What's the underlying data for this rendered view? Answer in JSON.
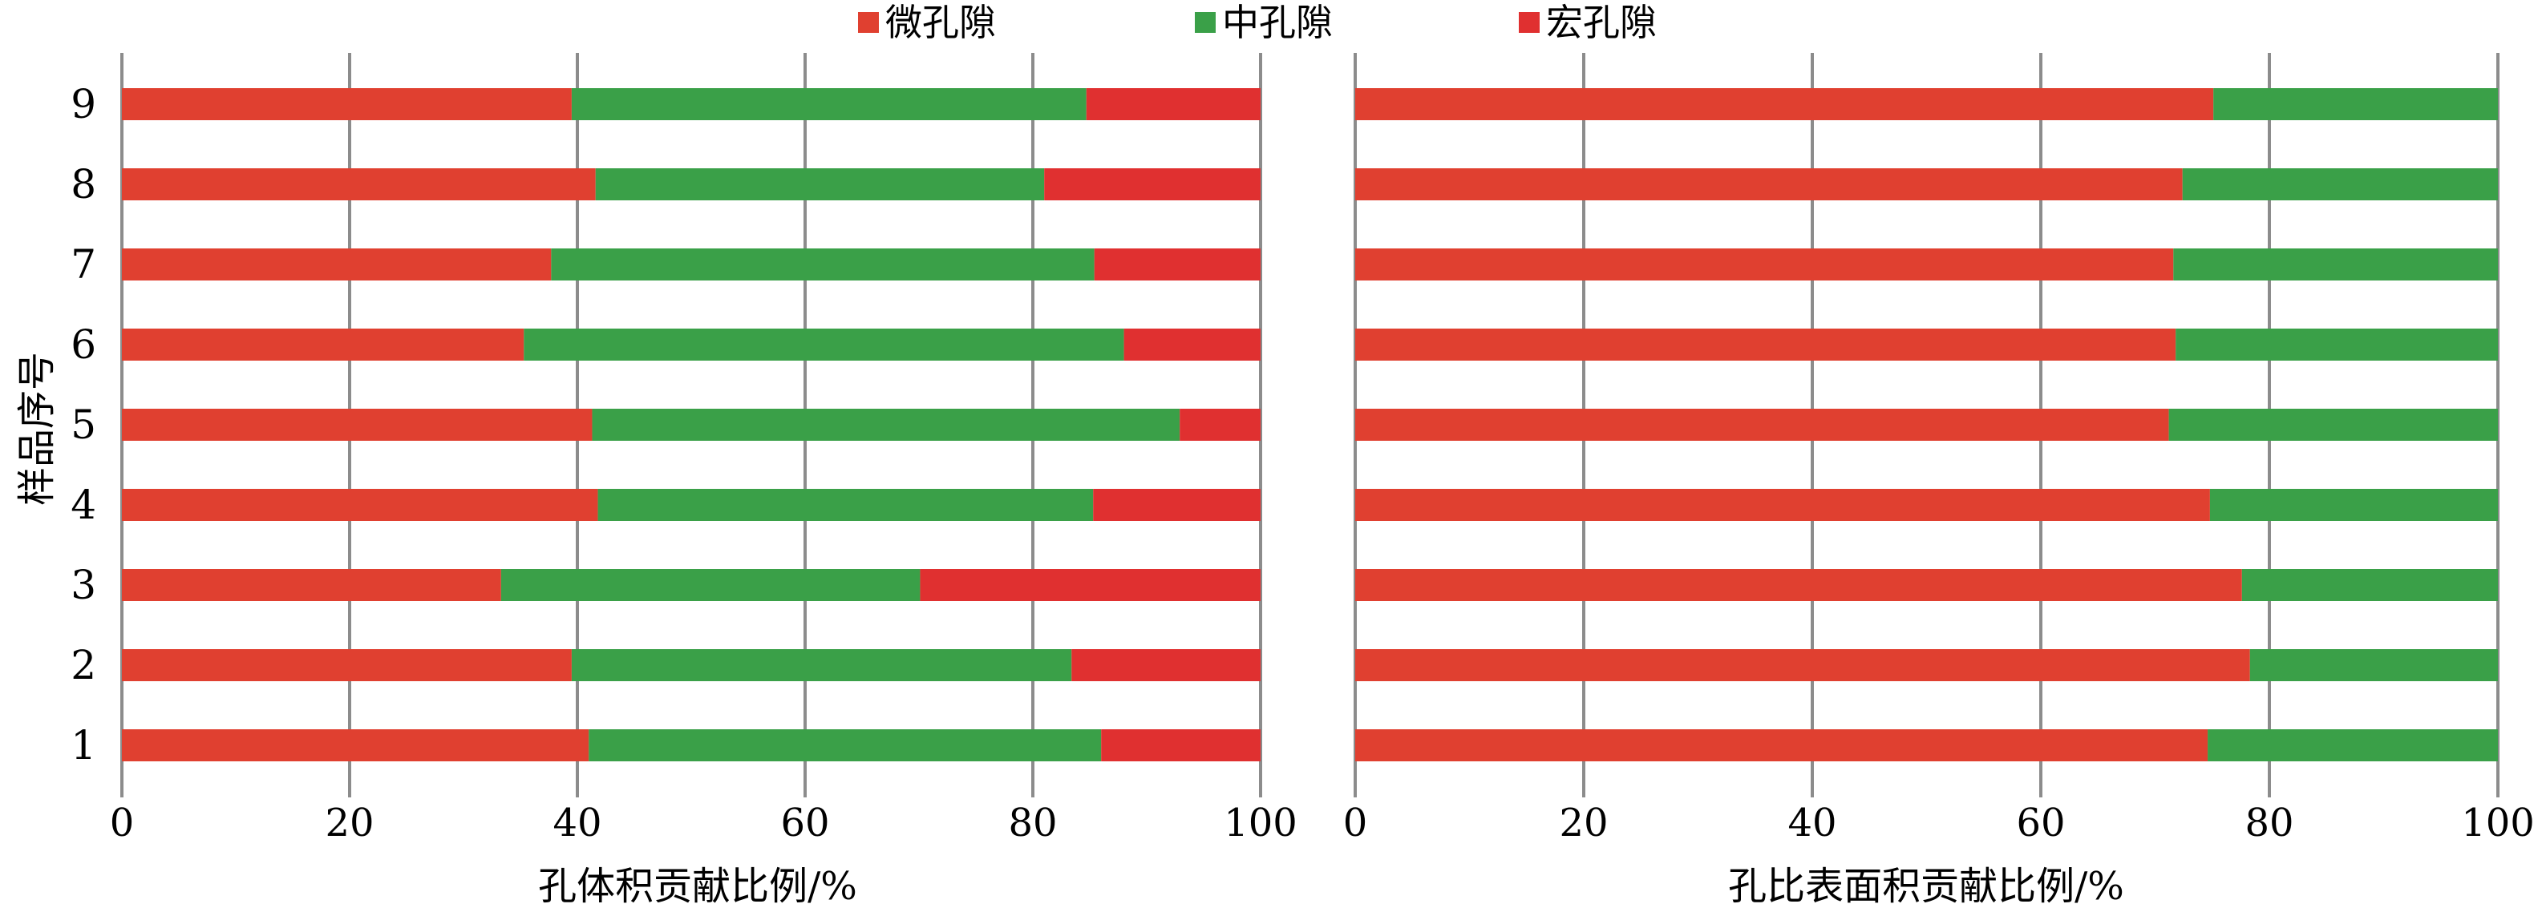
{
  "legend": [
    {
      "label": "微孔隙",
      "color": "#e04030"
    },
    {
      "label": "中孔隙",
      "color": "#3aa048"
    },
    {
      "label": "宏孔隙",
      "color": "#e03030"
    }
  ],
  "y_label": "样品序号",
  "chart_data": [
    {
      "type": "bar",
      "orientation": "horizontal",
      "stacked": true,
      "xlabel": "孔体积贡献比例/%",
      "ylabel": "样品序号",
      "xlim": [
        0,
        100
      ],
      "xticks": [
        "0",
        "20",
        "40",
        "60",
        "80",
        "100"
      ],
      "categories": [
        "1",
        "2",
        "3",
        "4",
        "5",
        "6",
        "7",
        "8",
        "9"
      ],
      "grid": "vertical",
      "series": [
        {
          "name": "微孔隙",
          "color": "#e04030",
          "values": [
            41.0,
            39.5,
            33.3,
            41.8,
            41.3,
            35.3,
            37.7,
            41.6,
            39.5
          ]
        },
        {
          "name": "中孔隙",
          "color": "#3aa048",
          "values": [
            45.0,
            43.9,
            36.8,
            43.5,
            51.6,
            52.7,
            47.7,
            39.4,
            45.2
          ]
        },
        {
          "name": "宏孔隙",
          "color": "#e03030",
          "values": [
            14.0,
            16.6,
            29.9,
            14.7,
            7.1,
            12.0,
            14.6,
            19.0,
            15.3
          ]
        }
      ]
    },
    {
      "type": "bar",
      "orientation": "horizontal",
      "stacked": true,
      "xlabel": "孔比表面积贡献比例/%",
      "xlim": [
        0,
        100
      ],
      "xticks": [
        "0",
        "20",
        "40",
        "60",
        "80",
        "100"
      ],
      "categories": [
        "1",
        "2",
        "3",
        "4",
        "5",
        "6",
        "7",
        "8",
        "9"
      ],
      "grid": "vertical",
      "series": [
        {
          "name": "微孔隙",
          "color": "#e04030",
          "values": [
            74.6,
            78.3,
            77.6,
            74.8,
            71.2,
            71.8,
            71.6,
            72.4,
            75.1
          ]
        },
        {
          "name": "中孔隙",
          "color": "#3aa048",
          "values": [
            25.4,
            21.7,
            22.4,
            25.2,
            28.8,
            28.2,
            28.4,
            27.6,
            24.9
          ]
        },
        {
          "name": "宏孔隙",
          "color": "#e03030",
          "values": [
            0,
            0,
            0,
            0,
            0,
            0,
            0,
            0,
            0
          ]
        }
      ]
    }
  ]
}
